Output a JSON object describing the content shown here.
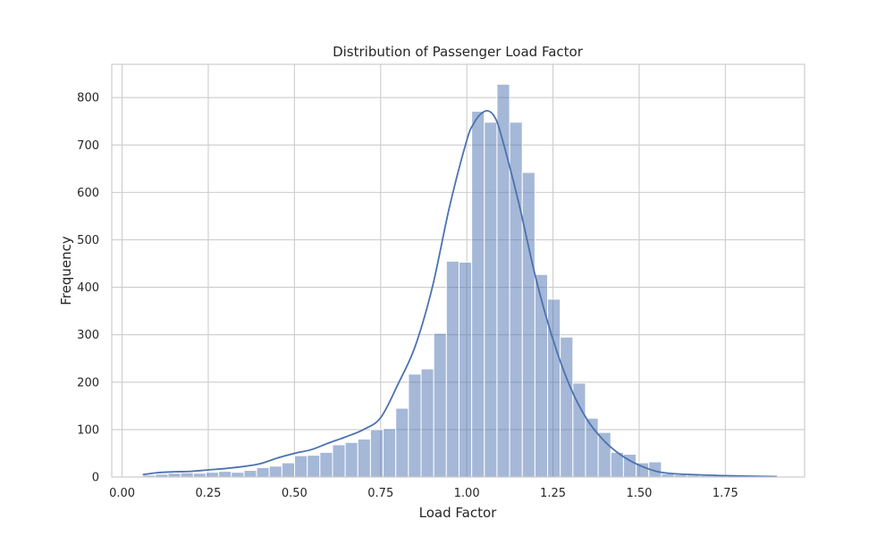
{
  "chart_data": {
    "type": "bar",
    "subtype": "histogram",
    "title": "Distribution of Passenger Load Factor",
    "xlabel": "Load Factor",
    "ylabel": "Frequency",
    "xlim": [
      -0.03,
      1.98
    ],
    "ylim": [
      0,
      870
    ],
    "xticks": [
      0.0,
      0.25,
      0.5,
      0.75,
      1.0,
      1.25,
      1.5,
      1.75
    ],
    "xtick_labels": [
      "0.00",
      "0.25",
      "0.50",
      "0.75",
      "1.00",
      "1.25",
      "1.50",
      "1.75"
    ],
    "yticks": [
      0,
      100,
      200,
      300,
      400,
      500,
      600,
      700,
      800
    ],
    "ytick_labels": [
      "0",
      "100",
      "200",
      "300",
      "400",
      "500",
      "600",
      "700",
      "800"
    ],
    "grid": true,
    "bar_color": "#4c72b0",
    "bar_opacity": 0.5,
    "kde_color": "#4c72b0",
    "bins": {
      "start": 0.06,
      "width": 0.0367,
      "counts": [
        4,
        6,
        8,
        9,
        8,
        10,
        12,
        10,
        14,
        20,
        23,
        30,
        45,
        46,
        52,
        68,
        73,
        80,
        100,
        102,
        145,
        217,
        228,
        303,
        455,
        453,
        771,
        748,
        828,
        748,
        642,
        427,
        375,
        295,
        198,
        124,
        94,
        52,
        48,
        30,
        32,
        7,
        5,
        4,
        3,
        3,
        2,
        1,
        1,
        3
      ]
    },
    "kde": {
      "x": [
        0.06,
        0.1,
        0.15,
        0.2,
        0.25,
        0.3,
        0.35,
        0.4,
        0.45,
        0.5,
        0.55,
        0.6,
        0.65,
        0.7,
        0.75,
        0.8,
        0.85,
        0.9,
        0.95,
        1.0,
        1.02,
        1.04,
        1.06,
        1.08,
        1.1,
        1.15,
        1.2,
        1.25,
        1.3,
        1.35,
        1.4,
        1.45,
        1.5,
        1.55,
        1.6,
        1.7,
        1.8,
        1.9
      ],
      "y": [
        5,
        9,
        11,
        12,
        15,
        18,
        22,
        28,
        40,
        50,
        58,
        72,
        85,
        100,
        125,
        195,
        275,
        400,
        570,
        710,
        745,
        765,
        772,
        760,
        720,
        580,
        420,
        290,
        190,
        120,
        75,
        45,
        25,
        12,
        7,
        4,
        2,
        1
      ]
    }
  }
}
